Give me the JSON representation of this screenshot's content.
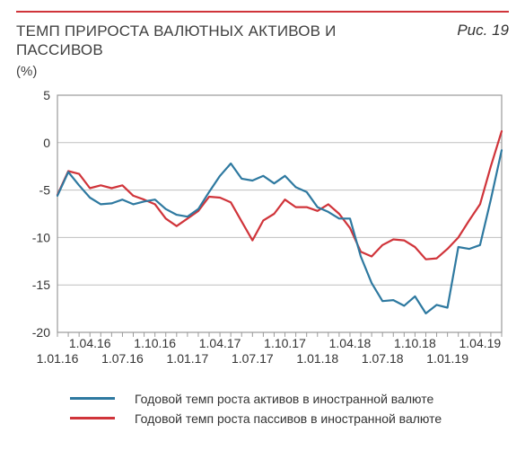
{
  "header": {
    "title": "ТЕМП ПРИРОСТА ВАЛЮТНЫХ АКТИВОВ  И ПАССИВОВ",
    "fig_label": "Рис. 19",
    "unit": "(%)"
  },
  "chart": {
    "type": "line",
    "background": "#ffffff",
    "rule_color": "#d0343a",
    "axis_color": "#9a9a9a",
    "grid_color": "#bfbfbf",
    "tick_fontsize": 14,
    "ylim": [
      -20,
      5
    ],
    "yticks": [
      -20,
      -15,
      -10,
      -5,
      0,
      5
    ],
    "x_count": 42,
    "xticks_major": [
      0,
      6,
      12,
      18,
      24,
      30,
      36,
      41
    ],
    "xticks_major_labels": [
      "1.01.16",
      "1.07.16",
      "1.01.17",
      "1.07.17",
      "1.01.18",
      "1.07.18",
      "1.01.19",
      ""
    ],
    "xticks_minor": [
      3,
      9,
      15,
      21,
      27,
      33,
      39
    ],
    "xticks_minor_labels": [
      "1.04.16",
      "1.10.16",
      "1.04.17",
      "1.10.17",
      "1.04.18",
      "1.10.18",
      "1.04.19"
    ],
    "series": {
      "assets": {
        "color": "#2e79a0",
        "width": 2.2,
        "label": "Годовой темп роста активов в иностранной валюте",
        "values": [
          -5.6,
          -3.1,
          -4.5,
          -5.8,
          -6.5,
          -6.4,
          -6.0,
          -6.5,
          -6.2,
          -6.0,
          -7.0,
          -7.6,
          -7.8,
          -7.0,
          -5.2,
          -3.5,
          -2.2,
          -3.8,
          -4.0,
          -3.5,
          -4.3,
          -3.5,
          -4.7,
          -5.2,
          -6.8,
          -7.3,
          -8.0,
          -8.0,
          -12.0,
          -14.8,
          -16.7,
          -16.6,
          -17.2,
          -16.2,
          -18.0,
          -17.1,
          -17.4,
          -11.0,
          -11.2,
          -10.8,
          -6.0,
          -0.8
        ]
      },
      "liabilities": {
        "color": "#d0343a",
        "width": 2.2,
        "label": "Годовой темп роста пассивов в иностранной валюте",
        "values": [
          -5.5,
          -3.0,
          -3.3,
          -4.8,
          -4.5,
          -4.8,
          -4.5,
          -5.6,
          -6.0,
          -6.5,
          -8.0,
          -8.8,
          -8.0,
          -7.2,
          -5.7,
          -5.8,
          -6.3,
          -8.3,
          -10.3,
          -8.2,
          -7.5,
          -6.0,
          -6.8,
          -6.8,
          -7.2,
          -6.5,
          -7.5,
          -9.0,
          -11.5,
          -12.0,
          -10.8,
          -10.2,
          -10.3,
          -11.0,
          -12.3,
          -12.2,
          -11.2,
          -10.0,
          -8.2,
          -6.5,
          -2.5,
          1.2
        ]
      }
    }
  }
}
